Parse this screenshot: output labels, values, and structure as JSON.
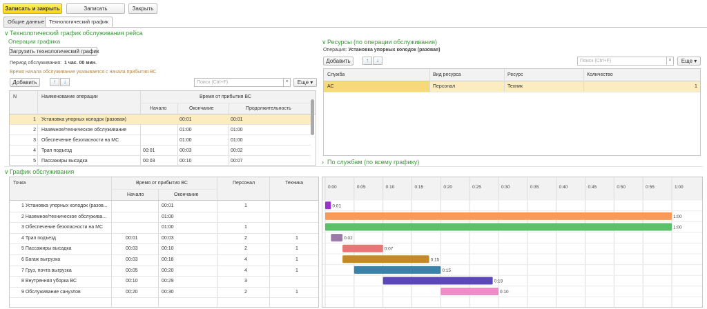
{
  "toolbar": {
    "save_close": "Записать и закрыть",
    "save": "Записать",
    "close": "Закрыть"
  },
  "tabs": [
    "Общие данные",
    "Технологический график"
  ],
  "tech_section": {
    "title": "Технологический график обслуживания рейса"
  },
  "ops": {
    "title": "Операции графика",
    "load_button": "Загрузить технологический график",
    "period_label": "Период обслуживания:",
    "period_value": "1 час. 00 мин.",
    "hint": "Время начала обслуживание указывается с начала прибытия ВС",
    "add": "Добавить",
    "search_placeholder": "Поиск (Ctrl+F)",
    "more": "Еще",
    "headers": {
      "n": "N",
      "name": "Наименование операции",
      "group": "Время от прибытия ВС",
      "start": "Начало",
      "end": "Окончание",
      "dur": "Продолжительность"
    },
    "rows": [
      {
        "n": "1",
        "name": "Установка упорных колодок (разовая)",
        "start": "",
        "end": "00:01",
        "dur": "00:01"
      },
      {
        "n": "2",
        "name": "Наземное/техническое обслуживание",
        "start": "",
        "end": "01:00",
        "dur": "01:00"
      },
      {
        "n": "3",
        "name": "Обеспечение безопасности на МС",
        "start": "",
        "end": "01:00",
        "dur": "01:00"
      },
      {
        "n": "4",
        "name": "Трап подъезд",
        "start": "00:01",
        "end": "00:03",
        "dur": "00:02"
      },
      {
        "n": "5",
        "name": "Пассажиры высадка",
        "start": "00:03",
        "end": "00:10",
        "dur": "00:07"
      }
    ]
  },
  "resources": {
    "title": "Ресурсы (по операции обслуживания)",
    "op_label": "Операция:",
    "op_value": "Установка упорных колодок (разовая)",
    "add": "Добавить",
    "search_placeholder": "Поиск (Ctrl+F)",
    "more": "Еще",
    "headers": [
      "Служба",
      "Вид ресурса",
      "Ресурс",
      "Количество"
    ],
    "rows": [
      {
        "service": "АС",
        "kind": "Персонал",
        "resource": "Техник",
        "qty": "1"
      }
    ]
  },
  "by_services": {
    "title": "По службам (по всему графику)"
  },
  "schedule": {
    "title": "График обслуживания",
    "headers": {
      "point": "Точка",
      "group": "Время от прибытия ВС",
      "start": "Начало",
      "end": "Окончание",
      "staff": "Персонал",
      "tech": "Техника"
    },
    "rows": [
      {
        "label": "1  Установка упорных колодок (разов...",
        "start": "",
        "end": "00:01",
        "staff": "1",
        "tech": ""
      },
      {
        "label": "2  Наземное/техническое обслужива...",
        "start": "",
        "end": "01:00",
        "staff": "",
        "tech": ""
      },
      {
        "label": "3  Обеспечение безопасности на МС",
        "start": "",
        "end": "01:00",
        "staff": "1",
        "tech": ""
      },
      {
        "label": "4  Трап подъезд",
        "start": "00:01",
        "end": "00:03",
        "staff": "2",
        "tech": "1"
      },
      {
        "label": "5  Пассажиры высадка",
        "start": "00:03",
        "end": "00:10",
        "staff": "2",
        "tech": "1"
      },
      {
        "label": "6  Багаж выгрузка",
        "start": "00:03",
        "end": "00:18",
        "staff": "4",
        "tech": "1"
      },
      {
        "label": "7  Груз, почта выгрузка",
        "start": "00:05",
        "end": "00:20",
        "staff": "4",
        "tech": "1"
      },
      {
        "label": "8  Внутренняя уборка ВС",
        "start": "00:10",
        "end": "00:29",
        "staff": "3",
        "tech": ""
      },
      {
        "label": "9  Обслуживание санузлов",
        "start": "00:20",
        "end": "00:30",
        "staff": "2",
        "tech": "1"
      }
    ]
  },
  "chart_data": {
    "type": "bar",
    "orientation": "horizontal-gantt",
    "x_ticks": [
      "0:00",
      "0:05",
      "0:10",
      "0:15",
      "0:20",
      "0:25",
      "0:30",
      "0:35",
      "0:40",
      "0:45",
      "0:50",
      "0:55",
      "1:00"
    ],
    "xlim": [
      0,
      60
    ],
    "bars": [
      {
        "start": 0,
        "end": 1,
        "label": "0:01",
        "color": "#9932cc"
      },
      {
        "start": 0,
        "end": 60,
        "label": "1:00",
        "color": "#f79a5a"
      },
      {
        "start": 0,
        "end": 60,
        "label": "1:00",
        "color": "#5cbf6a"
      },
      {
        "start": 1,
        "end": 3,
        "label": "0:02",
        "color": "#9a7aa6"
      },
      {
        "start": 3,
        "end": 10,
        "label": "0:07",
        "color": "#e87676"
      },
      {
        "start": 3,
        "end": 18,
        "label": "0:15",
        "color": "#c48a2a"
      },
      {
        "start": 5,
        "end": 20,
        "label": "0:15",
        "color": "#3b82a8"
      },
      {
        "start": 10,
        "end": 29,
        "label": "0:19",
        "color": "#5b47b8"
      },
      {
        "start": 20,
        "end": 30,
        "label": "0:10",
        "color": "#f08ac8"
      }
    ]
  }
}
